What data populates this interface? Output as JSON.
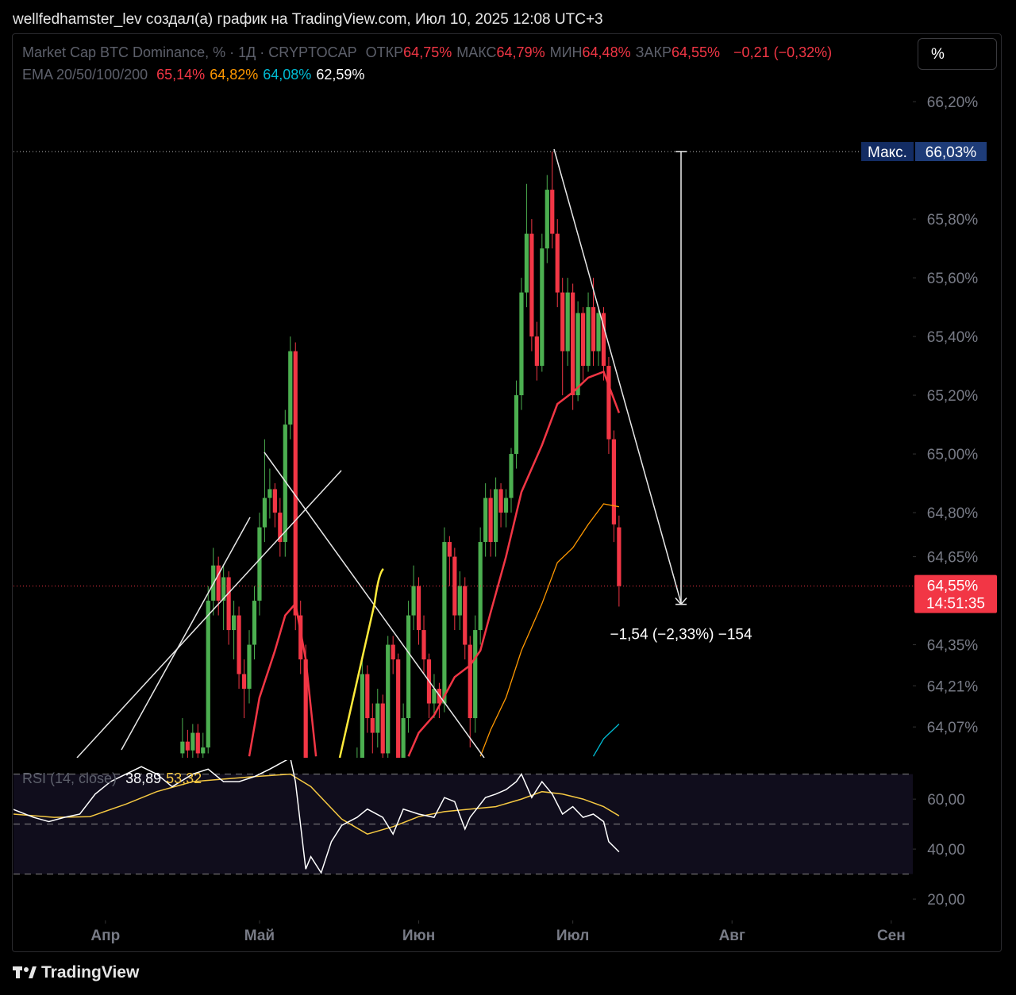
{
  "header": {
    "caption": "wellfedhamster_lev создал(а) график на TradingView.com, Июл 10, 2025 12:08 UTC+3",
    "logo": "TradingView"
  },
  "toolbar_button": "%",
  "chart_data": {
    "type": "candlestick",
    "title": "Market Cap BTC Dominance, % · 1Д · CRYPTOCAP",
    "ohlc_legend": [
      {
        "label": "ОТКР",
        "text": "64,75%"
      },
      {
        "label": "МАКС",
        "text": "64,79%"
      },
      {
        "label": "МИН",
        "text": "64,48%"
      },
      {
        "label": "ЗАКР",
        "text": "64,55%"
      }
    ],
    "change": "−0,21 (−0,32%)",
    "ema_title": "EMA 20/50/100/200",
    "ema_legend": [
      {
        "text": "65,14%",
        "color": "#f23645"
      },
      {
        "text": "64,82%",
        "color": "#ff9800"
      },
      {
        "text": "64,08%",
        "color": "#00bcd4"
      },
      {
        "text": "62,59%",
        "color": "#ffffff"
      }
    ],
    "up_color": "#4caf50",
    "down_color": "#f23645",
    "x": [
      15,
      16,
      17,
      18,
      19,
      20,
      21,
      22,
      23,
      24,
      25,
      26,
      27,
      28,
      29,
      30,
      31,
      32,
      33,
      34,
      35,
      36,
      37,
      38,
      39,
      40,
      41,
      42,
      43,
      44,
      45,
      46,
      47,
      48,
      49,
      50,
      51,
      52,
      53,
      54,
      55,
      56,
      57,
      58,
      59,
      60,
      61,
      62,
      63,
      64,
      65,
      66,
      67,
      68,
      69,
      70,
      71,
      72,
      73,
      74,
      75,
      76,
      77,
      78,
      79,
      80,
      81,
      82,
      83,
      84,
      85,
      86,
      87,
      88,
      89,
      90,
      91,
      92,
      93,
      94,
      95,
      96,
      97,
      98,
      99,
      100
    ],
    "open": [
      63.98,
      64.02,
      63.99,
      64.05,
      63.98,
      64.0,
      64.5,
      64.62,
      64.5,
      64.58,
      64.4,
      64.45,
      64.25,
      64.2,
      64.35,
      64.5,
      64.75,
      64.85,
      64.88,
      64.8,
      64.7,
      65.1,
      65.35,
      64.45,
      64.3,
      63.8,
      63.7,
      63.75,
      63.72,
      63.78,
      63.85,
      63.8,
      63.84,
      63.88,
      63.9,
      63.95,
      64.25,
      64.1,
      64.05,
      64.15,
      63.98,
      64.35,
      64.3,
      63.95,
      64.1,
      64.45,
      64.55,
      64.4,
      64.3,
      64.15,
      64.2,
      64.15,
      64.7,
      64.65,
      64.45,
      64.55,
      64.35,
      64.1,
      64.4,
      64.7,
      64.85,
      64.7,
      64.88,
      64.8,
      64.85,
      65.0,
      65.2,
      65.55,
      65.75,
      65.4,
      65.3,
      65.7,
      65.9,
      65.75,
      65.55,
      65.35,
      65.55,
      65.2,
      65.48,
      65.3,
      65.5,
      65.35,
      65.48,
      65.3,
      65.05,
      64.75
    ],
    "high": [
      64.1,
      64.06,
      64.08,
      64.08,
      64.05,
      64.55,
      64.68,
      64.65,
      64.62,
      64.6,
      64.5,
      64.48,
      64.3,
      64.4,
      64.55,
      64.8,
      65.05,
      64.95,
      64.9,
      64.85,
      65.15,
      65.4,
      65.38,
      64.5,
      64.35,
      63.88,
      63.8,
      63.85,
      63.82,
      63.9,
      63.92,
      63.88,
      63.92,
      63.95,
      64.0,
      64.3,
      64.28,
      64.15,
      64.2,
      64.18,
      64.38,
      64.38,
      64.32,
      64.15,
      64.5,
      64.62,
      64.58,
      64.45,
      64.32,
      64.25,
      64.22,
      64.75,
      64.72,
      64.68,
      64.6,
      64.58,
      64.38,
      64.45,
      64.75,
      64.9,
      64.88,
      64.92,
      64.9,
      64.88,
      65.02,
      65.25,
      65.6,
      65.92,
      65.8,
      65.45,
      65.75,
      65.95,
      66.03,
      65.8,
      65.6,
      65.6,
      65.58,
      65.52,
      65.5,
      65.55,
      65.6,
      65.5,
      65.5,
      65.33,
      65.08,
      64.79
    ],
    "low": [
      63.9,
      63.95,
      63.95,
      63.94,
      63.93,
      63.98,
      64.45,
      64.45,
      64.4,
      64.35,
      64.3,
      64.2,
      64.1,
      64.15,
      64.3,
      64.45,
      64.7,
      64.78,
      64.75,
      64.65,
      64.65,
      65.05,
      64.4,
      64.25,
      63.75,
      63.65,
      63.6,
      63.68,
      63.65,
      63.7,
      63.75,
      63.72,
      63.78,
      63.8,
      63.85,
      63.9,
      64.05,
      63.98,
      64.0,
      63.95,
      63.95,
      64.25,
      63.92,
      63.9,
      64.05,
      64.4,
      64.35,
      64.25,
      64.1,
      64.1,
      64.1,
      64.12,
      64.55,
      64.4,
      64.4,
      64.3,
      64.0,
      64.05,
      64.35,
      64.65,
      64.65,
      64.65,
      64.75,
      64.75,
      64.8,
      64.95,
      65.15,
      65.5,
      65.35,
      65.25,
      65.28,
      65.65,
      65.7,
      65.5,
      65.2,
      65.3,
      65.15,
      65.18,
      65.25,
      65.28,
      65.3,
      65.3,
      65.25,
      65.0,
      64.7,
      64.48
    ],
    "close": [
      64.02,
      63.99,
      64.05,
      63.98,
      64.0,
      64.5,
      64.62,
      64.5,
      64.58,
      64.4,
      64.45,
      64.25,
      64.2,
      64.35,
      64.5,
      64.75,
      64.85,
      64.88,
      64.8,
      64.7,
      65.1,
      65.35,
      64.45,
      64.3,
      63.8,
      63.7,
      63.75,
      63.72,
      63.78,
      63.85,
      63.8,
      63.84,
      63.88,
      63.9,
      63.95,
      64.25,
      64.1,
      64.05,
      64.15,
      63.98,
      64.35,
      64.3,
      63.95,
      64.1,
      64.45,
      64.55,
      64.4,
      64.3,
      64.15,
      64.2,
      64.15,
      64.7,
      64.65,
      64.45,
      64.55,
      64.35,
      64.1,
      64.4,
      64.7,
      64.85,
      64.7,
      64.88,
      64.8,
      64.85,
      65.0,
      65.2,
      65.55,
      65.75,
      65.4,
      65.3,
      65.7,
      65.9,
      65.75,
      65.55,
      65.35,
      65.55,
      65.2,
      65.48,
      65.3,
      65.5,
      65.35,
      65.48,
      65.3,
      65.05,
      64.76,
      64.55
    ],
    "ema_series": [
      {
        "color": "#f23645",
        "x": [
          28,
          30,
          33,
          35,
          37,
          39,
          41,
          50,
          59,
          61,
          64,
          68,
          71,
          73,
          75,
          78,
          81,
          85,
          88,
          91,
          94,
          97,
          100
        ],
        "values": [
          63.97,
          64.17,
          64.33,
          64.45,
          64.49,
          64.3,
          63.97,
          null,
          63.97,
          64.05,
          64.11,
          64.24,
          64.28,
          64.33,
          64.46,
          64.65,
          64.87,
          65.03,
          65.17,
          65.21,
          65.26,
          65.28,
          65.14
        ]
      },
      {
        "color": "#ff9800",
        "x": [
          73,
          75,
          78,
          81,
          85,
          88,
          91,
          94,
          97,
          100
        ],
        "values": [
          63.97,
          64.06,
          64.17,
          64.33,
          64.49,
          64.63,
          64.68,
          64.76,
          64.83,
          64.82
        ]
      },
      {
        "color": "#00bcd4",
        "x": [
          95,
          97,
          100
        ],
        "values": [
          63.97,
          64.03,
          64.08
        ]
      }
    ],
    "xlim": [
      -17.9,
      157.2
    ],
    "xticks": [
      {
        "value": 0,
        "label": "Апр"
      },
      {
        "value": 30,
        "label": "Май"
      },
      {
        "value": 61,
        "label": "Июн"
      },
      {
        "value": 91,
        "label": "Июл"
      },
      {
        "value": 122,
        "label": "Авг"
      },
      {
        "value": 153,
        "label": "Сен"
      }
    ],
    "ylim": [
      63.965,
      66.276
    ],
    "yticks": [
      {
        "value": 66.2,
        "label": "66,20%"
      },
      {
        "value": 65.8,
        "label": "65,80%"
      },
      {
        "value": 65.6,
        "label": "65,60%"
      },
      {
        "value": 65.4,
        "label": "65,40%"
      },
      {
        "value": 65.2,
        "label": "65,20%"
      },
      {
        "value": 65.0,
        "label": "65,00%"
      },
      {
        "value": 64.8,
        "label": "64,80%"
      },
      {
        "value": 64.65,
        "label": "64,65%"
      },
      {
        "value": 64.35,
        "label": "64,35%"
      },
      {
        "value": 64.21,
        "label": "64,21%"
      },
      {
        "value": 64.07,
        "label": "64,07%"
      }
    ],
    "max_marker": {
      "label": "Макс.",
      "values": [
        66.03
      ],
      "value_labels": [
        "66,03%"
      ]
    },
    "last_price": {
      "values": [
        64.55
      ],
      "value_labels": [
        "64,55%"
      ],
      "countdown": "14:51:35"
    },
    "measure_label": "−1,54 (−2,33%) −154",
    "rsi": {
      "title": "RSI (14, close)",
      "value_labels": [
        "38,89",
        "53,32"
      ],
      "ylim": [
        14,
        75.6
      ],
      "yticks": [
        {
          "value": 60,
          "label": "60,00"
        },
        {
          "value": 40,
          "label": "40,00"
        },
        {
          "value": 20,
          "label": "20,00"
        }
      ],
      "levels": [
        70,
        50,
        30
      ],
      "series": [
        {
          "color": "#ffffff",
          "x": [
            -18,
            -14,
            -11,
            -8,
            -5,
            -2,
            1,
            4,
            7,
            10,
            13,
            17,
            20,
            23,
            26,
            29,
            32,
            36,
            37,
            39,
            40,
            42,
            44,
            46,
            49,
            51,
            54,
            56,
            58,
            61,
            64,
            66,
            68,
            70,
            71,
            74,
            76,
            78,
            80,
            81,
            83,
            85,
            87,
            89,
            91,
            93,
            95,
            97,
            98,
            100
          ],
          "values": [
            55.9,
            52.7,
            51,
            52.7,
            54,
            62,
            67,
            70,
            73,
            70,
            65,
            70,
            72,
            67,
            67,
            69,
            72,
            76.5,
            67,
            32,
            37,
            30.5,
            43,
            49.5,
            52.7,
            56,
            52.7,
            46,
            56,
            54,
            52.7,
            60.6,
            59,
            48,
            52.7,
            60.6,
            62,
            63.8,
            67,
            70,
            60.6,
            67,
            62,
            54,
            57,
            52.7,
            54,
            51,
            43,
            38.89
          ]
        },
        {
          "color": "#f5c842",
          "x": [
            -18,
            -10,
            -3,
            4,
            10,
            17,
            23,
            29,
            36,
            40,
            46,
            51,
            56,
            61,
            66,
            71,
            76,
            81,
            85,
            89,
            93,
            97,
            100
          ],
          "values": [
            54,
            52.7,
            53,
            58,
            63,
            67,
            68,
            69,
            70,
            65,
            52,
            46,
            49,
            53,
            55,
            56,
            57,
            60,
            63,
            62,
            60,
            57,
            53.32
          ]
        }
      ]
    }
  }
}
